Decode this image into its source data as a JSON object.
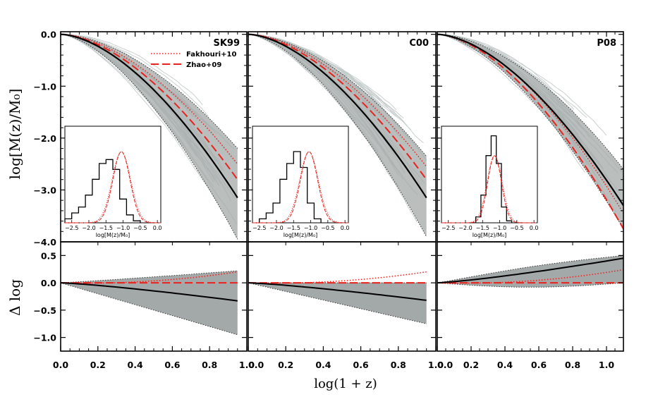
{
  "figure": {
    "ylabel_top": "log[M(z)/M₀]",
    "ylabel_bottom": "Δ log",
    "xlabel": "log(1 + z)"
  },
  "legend": [
    {
      "label": "Fakhouri+10",
      "style": "dotted",
      "color": "#e8221d"
    },
    {
      "label": "Zhao+09",
      "style": "dashed",
      "color": "#e8221d"
    }
  ],
  "colors": {
    "band": "#a3a9a8",
    "tracks": "#c3cbca",
    "median": "#000000",
    "model": "#e8221d"
  },
  "chart_data": [
    {
      "type": "line",
      "title": "SK99",
      "xlim": [
        0.0,
        1.0
      ],
      "ylim_top": [
        -4.0,
        0.05
      ],
      "ylim_bottom": [
        -1.25,
        0.75
      ],
      "x_ticks": [
        "0.0",
        "0.2",
        "0.4",
        "0.6",
        "0.8",
        "1.0"
      ],
      "y_ticks_top": [
        "0.0",
        "−1.0",
        "−2.0",
        "−3.0",
        "−4.0"
      ],
      "y_ticks_bottom": [
        "0.5",
        "0.0",
        "−0.5",
        "−1.0"
      ],
      "x_max": 0.95,
      "median_end": -3.15,
      "band_lower_end": -3.95,
      "band_upper_end": -2.2,
      "fakhouri_end": -2.5,
      "zhao_end": -2.8,
      "delta_median_end": -0.33,
      "delta_band_lower_end": -0.95,
      "delta_band_upper_end": 0.22,
      "delta_fakhouri_end": 0.2,
      "inset": {
        "xlabel": "log[M(z)/M₀]",
        "x_ticks": [
          "−2.5",
          "−2.0",
          "−1.5",
          "−1.0",
          "−0.5",
          "0.0"
        ],
        "xlim": [
          -2.7,
          0.1
        ],
        "hist_bin_edges": [
          -2.7,
          -2.5,
          -2.3,
          -2.1,
          -1.9,
          -1.7,
          -1.5,
          -1.3,
          -1.1,
          -0.9,
          -0.7,
          -0.5
        ],
        "hist_counts": [
          2,
          5,
          8,
          14,
          22,
          30,
          32,
          27,
          12,
          4,
          1
        ],
        "gauss_fakhouri": {
          "mu": -1.05,
          "sigma": 0.27
        },
        "gauss_zhao": {
          "mu": -1.05,
          "sigma": 0.25
        }
      }
    },
    {
      "type": "line",
      "title": "C00",
      "xlim": [
        0.0,
        1.0
      ],
      "ylim_top": [
        -4.0,
        0.05
      ],
      "ylim_bottom": [
        -1.25,
        0.75
      ],
      "x_ticks": [
        "0.0",
        "0.2",
        "0.4",
        "0.6",
        "0.8",
        "1.0"
      ],
      "y_ticks_top": [
        "0.0",
        "−1.0",
        "−2.0",
        "−3.0",
        "−4.0"
      ],
      "y_ticks_bottom": [
        "0.5",
        "0.0",
        "−0.5",
        "−1.0"
      ],
      "x_max": 0.95,
      "median_end": -3.15,
      "band_lower_end": -3.9,
      "band_upper_end": -2.35,
      "fakhouri_end": -2.55,
      "zhao_end": -2.8,
      "delta_median_end": -0.32,
      "delta_band_lower_end": -0.75,
      "delta_band_upper_end": 0.0,
      "delta_fakhouri_end": 0.2,
      "inset": {
        "xlabel": "log[M(z)/M₀]",
        "x_ticks": [
          "−2.5",
          "−2.0",
          "−1.5",
          "−1.0",
          "−0.5",
          "0.0"
        ],
        "xlim": [
          -2.7,
          0.1
        ],
        "hist_bin_edges": [
          -2.5,
          -2.3,
          -2.1,
          -1.9,
          -1.7,
          -1.5,
          -1.3,
          -1.1,
          -0.9,
          -0.7
        ],
        "hist_counts": [
          2,
          5,
          10,
          22,
          30,
          36,
          28,
          10,
          2
        ],
        "gauss_fakhouri": {
          "mu": -1.05,
          "sigma": 0.27
        },
        "gauss_zhao": {
          "mu": -1.05,
          "sigma": 0.25
        }
      }
    },
    {
      "type": "line",
      "title": "P08",
      "xlim": [
        0.0,
        1.1
      ],
      "ylim_top": [
        -4.0,
        0.05
      ],
      "ylim_bottom": [
        -1.25,
        0.75
      ],
      "x_ticks": [
        "0.0",
        "0.2",
        "0.4",
        "0.6",
        "0.8",
        "1.0"
      ],
      "y_ticks_top": [
        "0.0",
        "−1.0",
        "−2.0",
        "−3.0",
        "−4.0"
      ],
      "y_ticks_bottom": [
        "0.5",
        "0.0",
        "−0.5",
        "−1.0"
      ],
      "x_max": 1.1,
      "median_end": -3.3,
      "band_lower_end": -3.75,
      "band_upper_end": -2.6,
      "fakhouri_end": -3.45,
      "zhao_end": -3.75,
      "delta_median_end": 0.45,
      "delta_band_lower_end": 0.0,
      "delta_band_upper_end": 0.5,
      "delta_fakhouri_end": 0.24,
      "inset": {
        "xlabel": "log[M(z)/M₀]",
        "x_ticks": [
          "−2.5",
          "−2.0",
          "−1.5",
          "−1.0",
          "−0.5",
          "0.0"
        ],
        "xlim": [
          -2.7,
          0.1
        ],
        "hist_bin_edges": [
          -1.7,
          -1.55,
          -1.4,
          -1.25,
          -1.1,
          -0.95,
          -0.8,
          -0.65
        ],
        "hist_counts": [
          3,
          14,
          34,
          44,
          30,
          8,
          1
        ],
        "gauss_fakhouri": {
          "mu": -1.15,
          "sigma": 0.22
        },
        "gauss_zhao": {
          "mu": -1.15,
          "sigma": 0.2
        }
      }
    }
  ]
}
